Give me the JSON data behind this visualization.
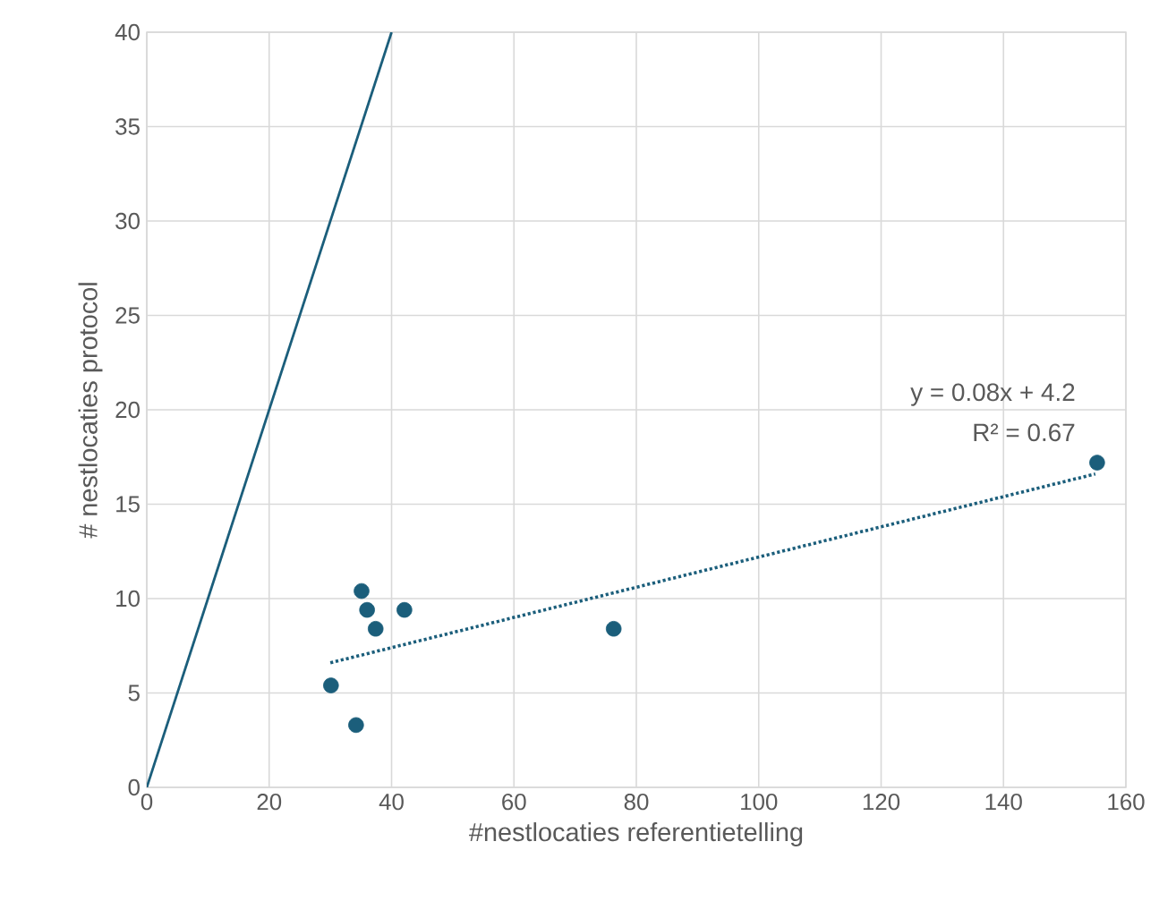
{
  "chart_data": {
    "type": "scatter",
    "xlabel": "#nestlocaties referentietelling",
    "ylabel": "# nestlocaties protocol",
    "xlim": [
      0,
      160
    ],
    "ylim": [
      0,
      40
    ],
    "xticks": [
      0,
      20,
      40,
      60,
      80,
      100,
      120,
      140,
      160
    ],
    "yticks": [
      0,
      5,
      10,
      15,
      20,
      25,
      30,
      35,
      40
    ],
    "grid": true,
    "series": [
      {
        "marker": "circle",
        "color": "#1b5e7b",
        "x": [
          30.1,
          34.2,
          35.1,
          36.0,
          37.4,
          42.1,
          76.3,
          155.3
        ],
        "values": [
          5.4,
          3.3,
          10.4,
          9.4,
          8.4,
          9.4,
          8.4,
          17.2
        ]
      },
      {
        "type": "line",
        "marker": "none",
        "color": "#1b5e7b",
        "x": [
          0,
          40
        ],
        "values": [
          0,
          40
        ]
      },
      {
        "type": "line",
        "marker": "none",
        "color": "#1b5e7b",
        "line_style": "dotted",
        "x": [
          30,
          155
        ],
        "values": [
          6.6,
          16.6
        ]
      }
    ],
    "annotations": [
      "y = 0.08x + 4.2",
      "R² = 0.67"
    ]
  }
}
